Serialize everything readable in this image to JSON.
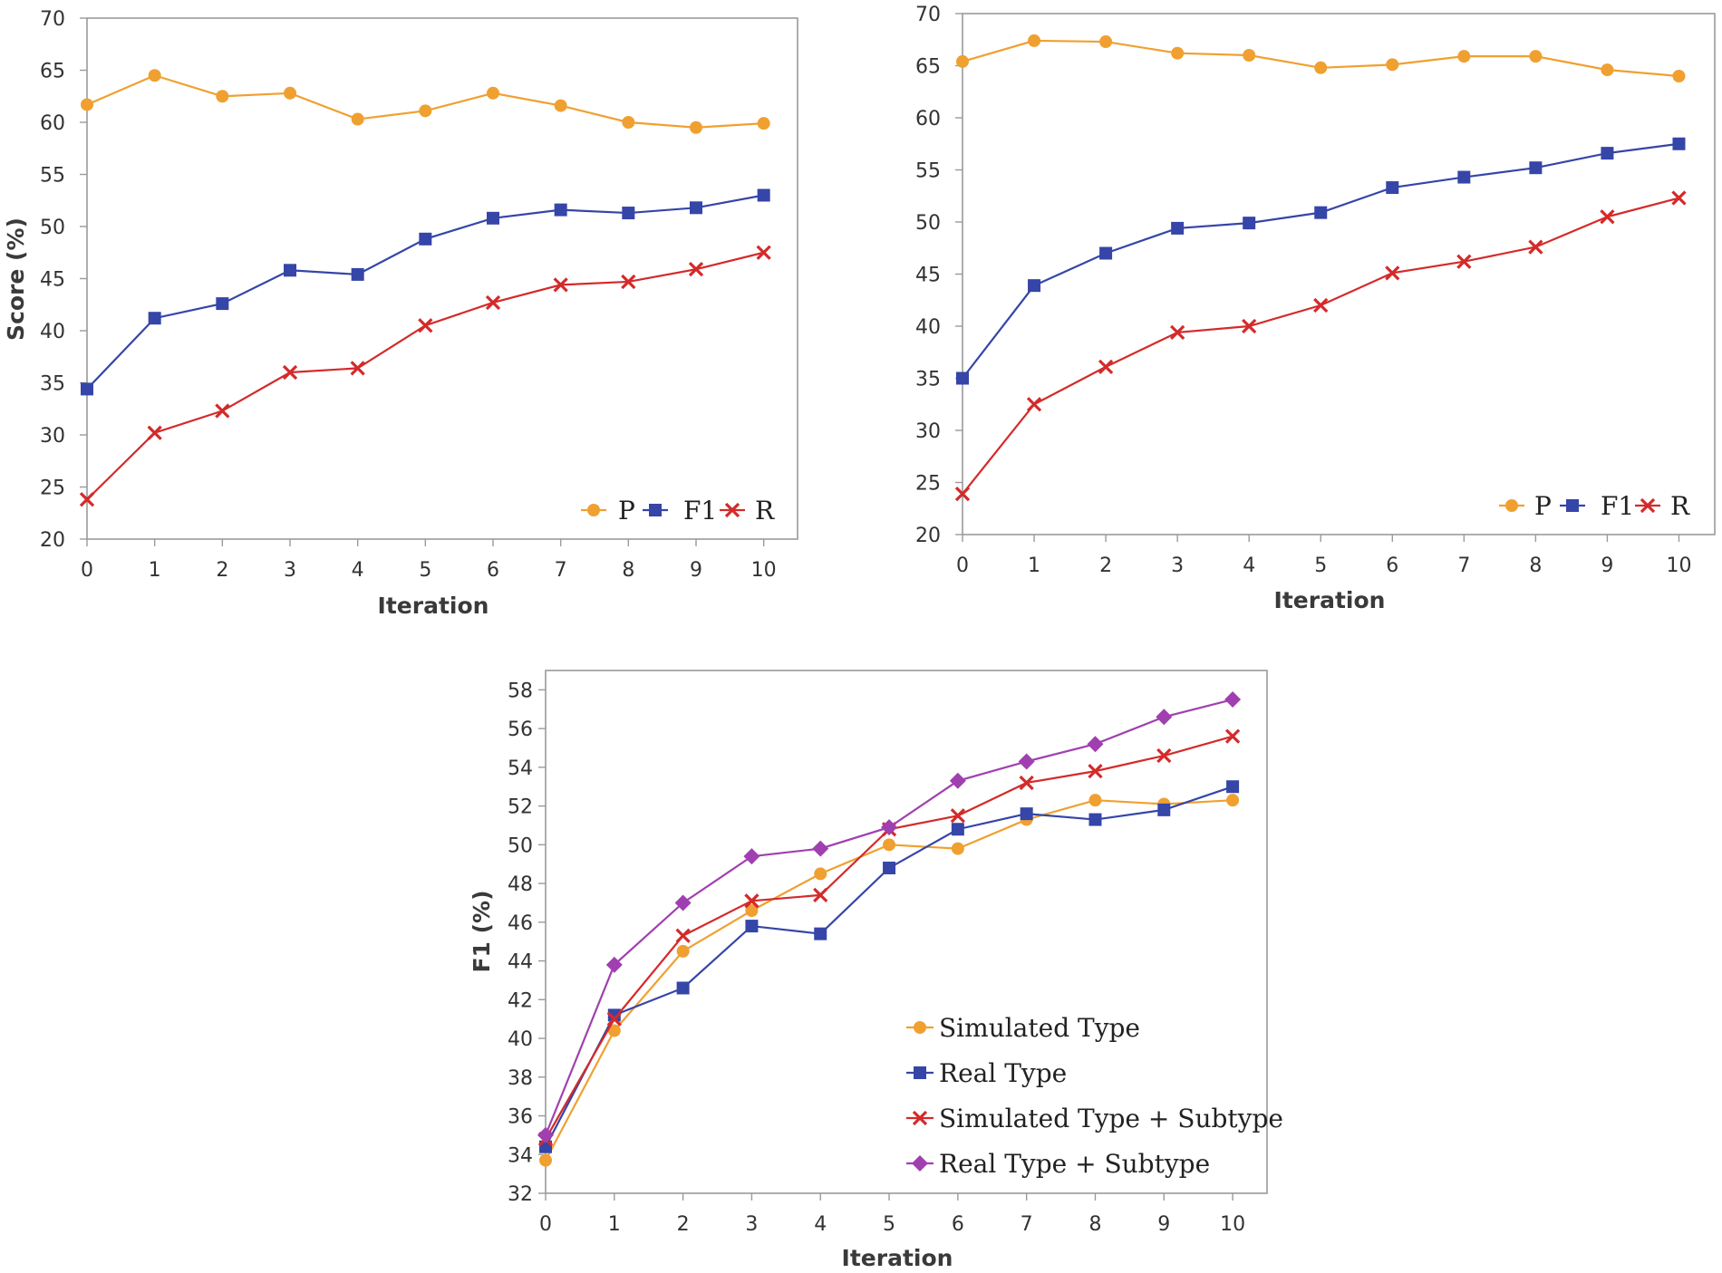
{
  "chart_data": [
    {
      "type": "line",
      "title": "",
      "xlabel": "Iteration",
      "ylabel": "Score (%)",
      "x": [
        0,
        1,
        2,
        3,
        4,
        5,
        6,
        7,
        8,
        9,
        10
      ],
      "xlim": [
        0,
        10.5
      ],
      "ylim": [
        20,
        70
      ],
      "yticks": [
        20,
        25,
        30,
        35,
        40,
        45,
        50,
        55,
        60,
        65,
        70
      ],
      "grid": false,
      "legend": "bottom-right, horizontal",
      "series": [
        {
          "name": "P",
          "color": "#f0a030",
          "marker": "circle",
          "values": [
            61.7,
            64.5,
            62.5,
            62.8,
            60.3,
            61.1,
            62.8,
            61.6,
            60.0,
            59.5,
            59.9
          ]
        },
        {
          "name": "F1",
          "color": "#3545a8",
          "marker": "square",
          "values": [
            34.4,
            41.2,
            42.6,
            45.8,
            45.4,
            48.8,
            50.8,
            51.6,
            51.3,
            51.8,
            53.0
          ]
        },
        {
          "name": "R",
          "color": "#d42a2a",
          "marker": "x",
          "values": [
            23.8,
            30.2,
            32.3,
            36.0,
            36.4,
            40.5,
            42.7,
            44.4,
            44.7,
            45.9,
            47.5
          ]
        }
      ]
    },
    {
      "type": "line",
      "title": "",
      "xlabel": "Iteration",
      "ylabel": "",
      "x": [
        0,
        1,
        2,
        3,
        4,
        5,
        6,
        7,
        8,
        9,
        10
      ],
      "xlim": [
        0,
        10.5
      ],
      "ylim": [
        20,
        70
      ],
      "yticks": [
        20,
        25,
        30,
        35,
        40,
        45,
        50,
        55,
        60,
        65,
        70
      ],
      "grid": false,
      "legend": "bottom-right, horizontal",
      "series": [
        {
          "name": "P",
          "color": "#f0a030",
          "marker": "circle",
          "values": [
            65.4,
            67.4,
            67.3,
            66.2,
            66.0,
            64.8,
            65.1,
            65.9,
            65.9,
            64.6,
            64.0
          ]
        },
        {
          "name": "F1",
          "color": "#3545a8",
          "marker": "square",
          "values": [
            35.0,
            43.9,
            47.0,
            49.4,
            49.9,
            50.9,
            53.3,
            54.3,
            55.2,
            56.6,
            57.5
          ]
        },
        {
          "name": "R",
          "color": "#d42a2a",
          "marker": "x",
          "values": [
            23.9,
            32.5,
            36.1,
            39.4,
            40.0,
            42.0,
            45.1,
            46.2,
            47.6,
            50.5,
            52.3
          ]
        }
      ]
    },
    {
      "type": "line",
      "title": "",
      "xlabel": "Iteration",
      "ylabel": "F1 (%)",
      "x": [
        0,
        1,
        2,
        3,
        4,
        5,
        6,
        7,
        8,
        9,
        10
      ],
      "xlim": [
        0,
        10.5
      ],
      "ylim": [
        32,
        59
      ],
      "yticks": [
        32,
        34,
        36,
        38,
        40,
        42,
        44,
        46,
        48,
        50,
        52,
        54,
        56,
        58
      ],
      "grid": false,
      "legend": "bottom-right, vertical",
      "series": [
        {
          "name": "Simulated Type",
          "color": "#f0a030",
          "marker": "circle",
          "values": [
            33.7,
            40.4,
            44.5,
            46.6,
            48.5,
            50.0,
            49.8,
            51.3,
            52.3,
            52.1,
            52.3
          ]
        },
        {
          "name": "Real Type",
          "color": "#3545a8",
          "marker": "square",
          "values": [
            34.4,
            41.2,
            42.6,
            45.8,
            45.4,
            48.8,
            50.8,
            51.6,
            51.3,
            51.8,
            53.0
          ]
        },
        {
          "name": "Simulated Type + Subtype",
          "color": "#d42a2a",
          "marker": "x",
          "values": [
            34.8,
            41.0,
            45.3,
            47.1,
            47.4,
            50.8,
            51.5,
            53.2,
            53.8,
            54.6,
            55.6
          ]
        },
        {
          "name": "Real Type + Subtype",
          "color": "#a040b0",
          "marker": "diamond",
          "values": [
            35.0,
            43.8,
            47.0,
            49.4,
            49.8,
            50.9,
            53.3,
            54.3,
            55.2,
            56.6,
            57.5
          ]
        }
      ]
    }
  ]
}
